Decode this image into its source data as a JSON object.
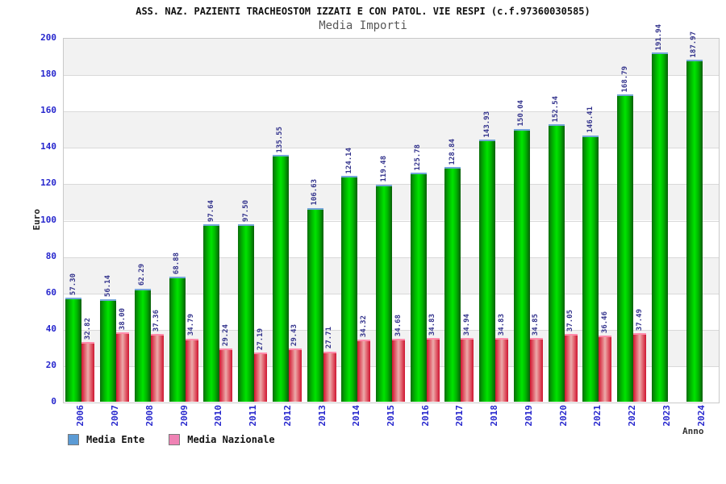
{
  "header": {
    "title": "ASS. NAZ. PAZIENTI TRACHEOSTOM IZZATI E CON PATOL. VIE RESPI (c.f.97360030585)",
    "subtitle": "Media Importi"
  },
  "chart_data": {
    "type": "bar",
    "title": "ASS. NAZ. PAZIENTI TRACHEOSTOM IZZATI E CON PATOL. VIE RESPI (c.f.97360030585)",
    "subtitle": "Media Importi",
    "xlabel": "Anno",
    "ylabel": "Euro",
    "ylim": [
      0,
      200
    ],
    "yticks": [
      0,
      20,
      40,
      60,
      80,
      100,
      120,
      140,
      160,
      180,
      200
    ],
    "grid": "horizontal-bands-alternating",
    "legend_position": "bottom-left",
    "value_label_decimals": 2,
    "value_label_rotation": -90,
    "category_label_rotation": -90,
    "categories": [
      "2006",
      "2007",
      "2008",
      "2009",
      "2010",
      "2011",
      "2012",
      "2013",
      "2014",
      "2015",
      "2016",
      "2017",
      "2018",
      "2019",
      "2020",
      "2021",
      "2022",
      "2023",
      "2024"
    ],
    "series": [
      {
        "name": "Media Ente",
        "legend_color": "#5b9bd5",
        "bar_colors": {
          "edge": "#0b6e0b",
          "center": "#00e400",
          "cap": "#74a6d8"
        },
        "values": [
          57.3,
          56.14,
          62.29,
          68.88,
          97.64,
          97.5,
          135.55,
          106.63,
          124.14,
          119.48,
          125.78,
          128.84,
          143.93,
          150.04,
          152.54,
          146.41,
          168.79,
          191.94,
          187.97
        ]
      },
      {
        "name": "Media Nazionale",
        "legend_color": "#ef82b4",
        "bar_colors": {
          "edge": "#d21430",
          "center": "#ecabab",
          "cap": "#ff8cab"
        },
        "values": [
          32.82,
          38.0,
          37.36,
          34.79,
          29.24,
          27.19,
          29.43,
          27.71,
          34.32,
          34.68,
          34.83,
          34.94,
          34.83,
          34.85,
          37.05,
          36.46,
          37.49,
          null,
          null
        ]
      }
    ]
  },
  "colors": {
    "axis_label_blue": "#2626cd",
    "value_label_navy": "#33338c",
    "band_gray": "#f2f2f2",
    "band_white": "#ffffff",
    "plot_border": "#c9c9c9",
    "gridline": "#d9d9d9",
    "title_black": "#111111",
    "subtitle_gray": "#585858"
  }
}
